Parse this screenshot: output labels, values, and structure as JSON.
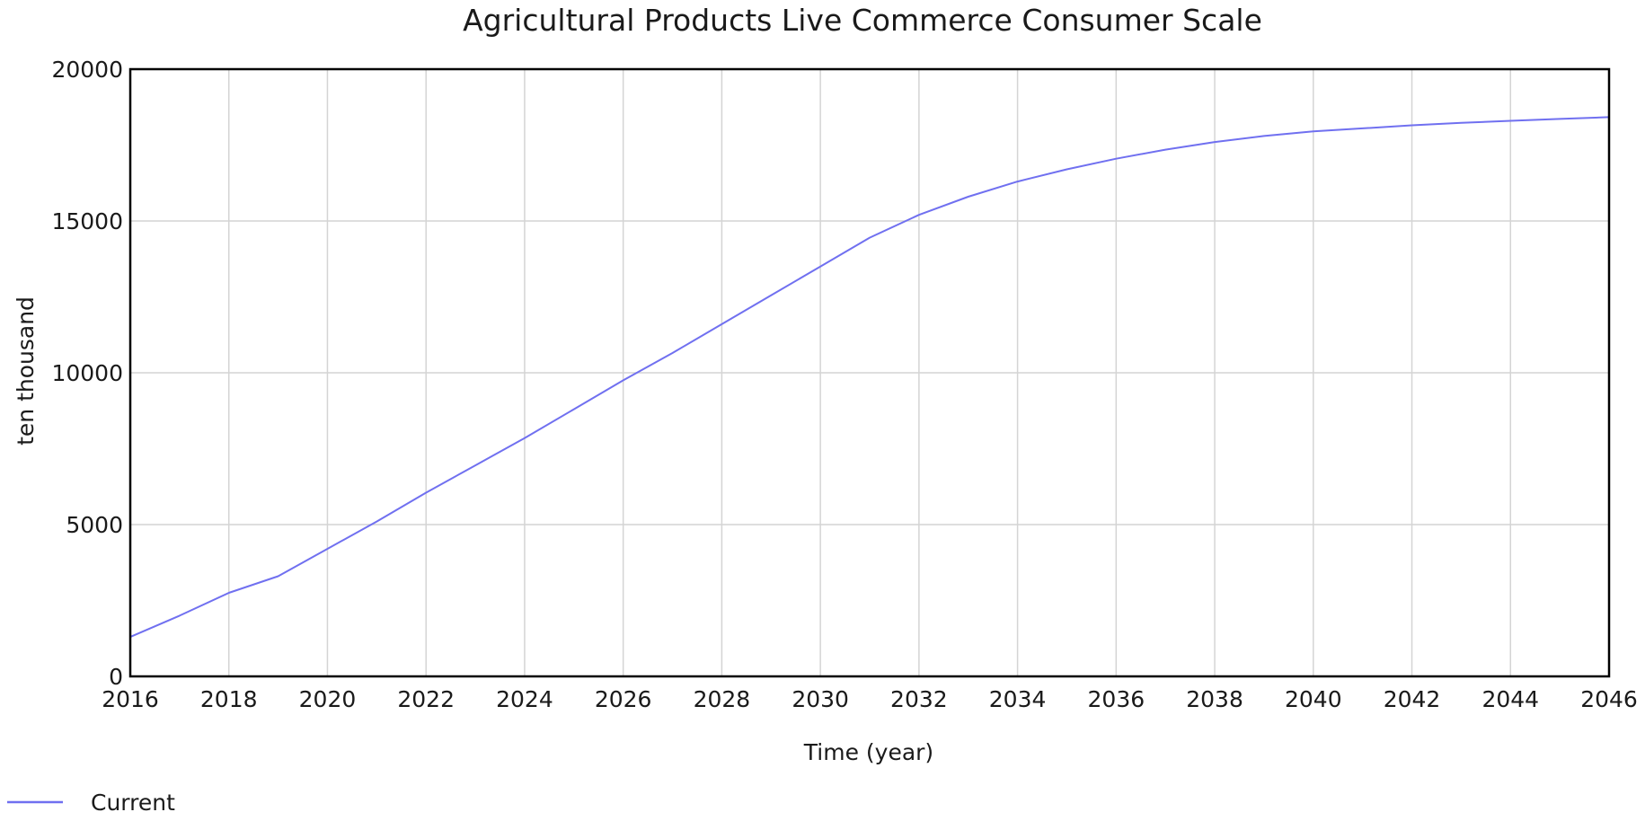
{
  "chart_data": {
    "type": "line",
    "title": "Agricultural Products Live Commerce Consumer Scale",
    "xlabel": "Time (year)",
    "ylabel": "ten thousand",
    "xlim": [
      2016,
      2046
    ],
    "ylim": [
      0,
      20000
    ],
    "x_ticks": [
      2016,
      2018,
      2020,
      2022,
      2024,
      2026,
      2028,
      2030,
      2032,
      2034,
      2036,
      2038,
      2040,
      2042,
      2044,
      2046
    ],
    "y_ticks": [
      0,
      5000,
      10000,
      15000,
      20000
    ],
    "grid": true,
    "legend_position": "bottom-left",
    "series": [
      {
        "name": "Current",
        "color": "#7070f0",
        "x": [
          2016,
          2017,
          2018,
          2019,
          2020,
          2021,
          2022,
          2023,
          2024,
          2025,
          2026,
          2027,
          2028,
          2029,
          2030,
          2031,
          2032,
          2033,
          2034,
          2035,
          2036,
          2037,
          2038,
          2039,
          2040,
          2041,
          2042,
          2043,
          2044,
          2045,
          2046
        ],
        "y": [
          1300,
          2000,
          2750,
          3300,
          4200,
          5100,
          6050,
          6950,
          7850,
          8800,
          9750,
          10650,
          11600,
          12550,
          13500,
          14450,
          15200,
          15800,
          16300,
          16700,
          17050,
          17350,
          17600,
          17800,
          17950,
          18050,
          18150,
          18230,
          18300,
          18360,
          18420
        ]
      }
    ]
  }
}
